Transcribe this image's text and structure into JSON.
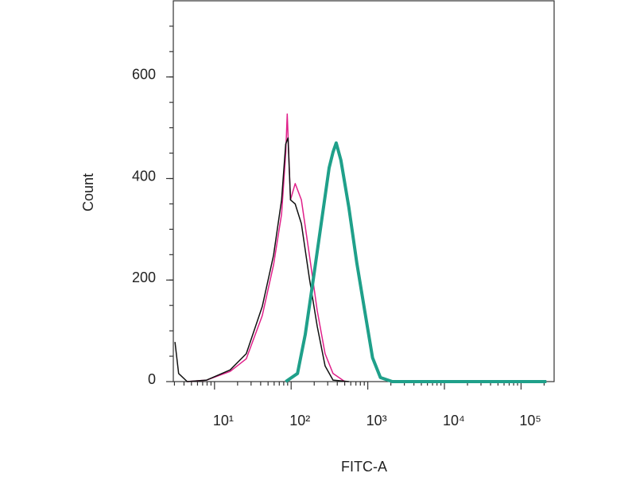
{
  "chart_data": {
    "type": "line",
    "xlabel": "FITC-A",
    "ylabel": "Count",
    "xscale": "log",
    "xlim": [
      2.9,
      270000
    ],
    "ylim": [
      0,
      750
    ],
    "xticks": [
      {
        "value": 10,
        "label": "10¹"
      },
      {
        "value": 100,
        "label": "10²"
      },
      {
        "value": 1000,
        "label": "10³"
      },
      {
        "value": 10000,
        "label": "10⁴"
      },
      {
        "value": 100000,
        "label": "10⁵"
      }
    ],
    "yticks": [
      0,
      200,
      400,
      600
    ],
    "series": [
      {
        "color": "#e0208a",
        "width": 1.5,
        "x": [
          4.4,
          7.9,
          16,
          26,
          42,
          59,
          75,
          85,
          89,
          98,
          113,
          136,
          173,
          219,
          277,
          352,
          502
        ],
        "values": [
          0,
          3,
          20,
          45,
          130,
          230,
          330,
          450,
          527,
          358,
          390,
          358,
          249,
          140,
          55,
          16,
          0
        ]
      },
      {
        "color": "#111111",
        "width": 1.5,
        "x": [
          3.05,
          3.4,
          4.4,
          7.9,
          16,
          26,
          42,
          59,
          75,
          85,
          91,
          98,
          113,
          136,
          173,
          219,
          277,
          352,
          566
        ],
        "values": [
          78,
          16,
          0,
          3,
          23,
          55,
          148,
          249,
          358,
          468,
          480,
          358,
          350,
          311,
          203,
          109,
          31,
          3,
          0
        ]
      },
      {
        "color": "#1fa08a",
        "width": 4,
        "x": [
          85,
          121,
          153,
          195,
          247,
          313,
          352,
          387,
          446,
          566,
          718,
          910,
          1153,
          1462,
          2090,
          214000
        ],
        "values": [
          0,
          16,
          93,
          203,
          312,
          421,
          452,
          470,
          436,
          343,
          234,
          140,
          47,
          8,
          0,
          0
        ]
      }
    ]
  }
}
